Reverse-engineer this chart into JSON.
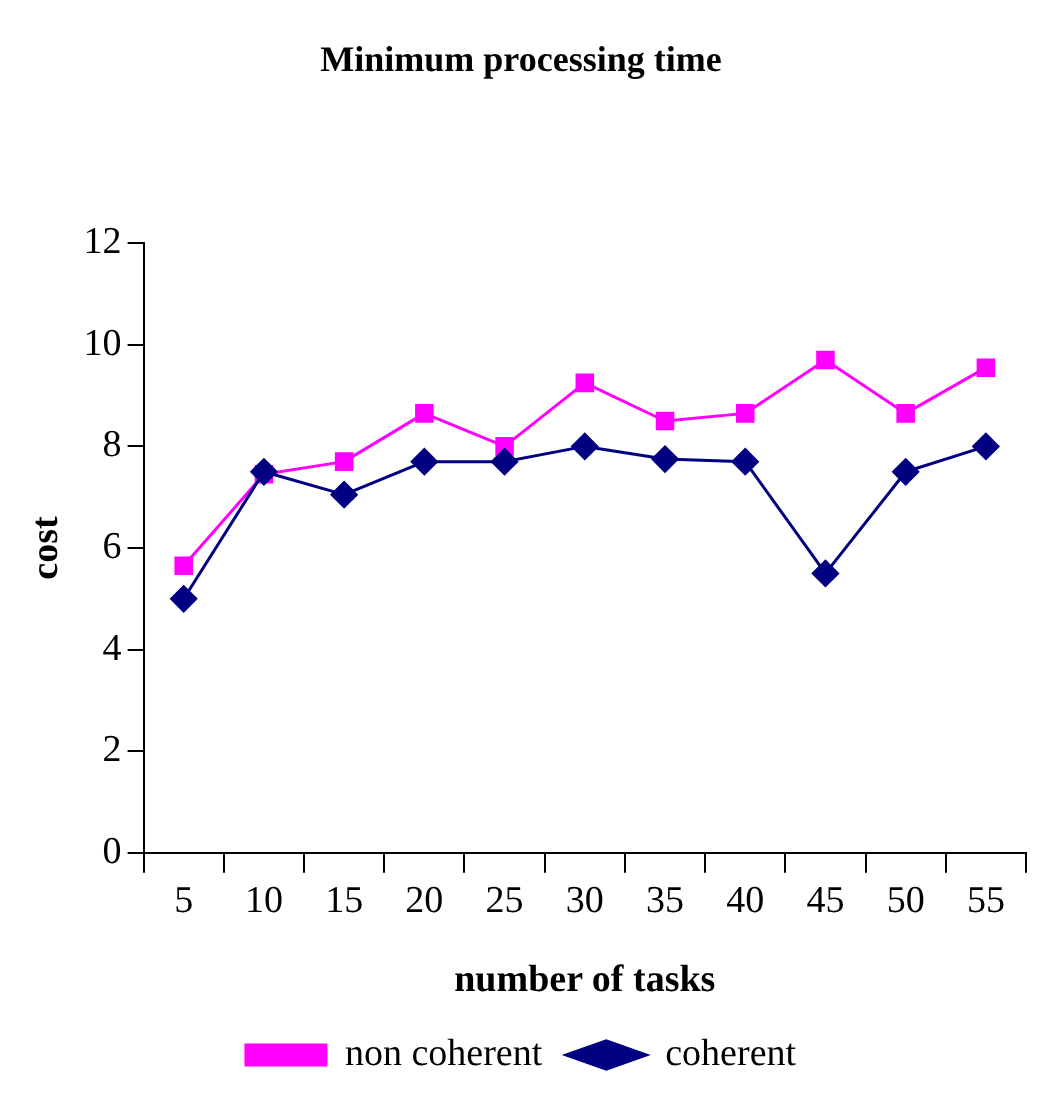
{
  "chart_data": {
    "type": "line",
    "title": "Minimum processing time",
    "xlabel": "number of tasks",
    "ylabel": "cost",
    "categories": [
      "5",
      "10",
      "15",
      "20",
      "25",
      "30",
      "35",
      "40",
      "45",
      "50",
      "55"
    ],
    "series": [
      {
        "name": "non coherent",
        "color": "#ff00ff",
        "marker": "square",
        "values": [
          5.65,
          7.45,
          7.7,
          8.65,
          8.0,
          9.25,
          8.5,
          8.65,
          9.7,
          8.65,
          9.55
        ]
      },
      {
        "name": "coherent",
        "color": "#000080",
        "marker": "diamond",
        "values": [
          5.0,
          7.5,
          7.05,
          7.7,
          7.7,
          8.0,
          7.75,
          7.7,
          5.5,
          7.5,
          8.0
        ]
      }
    ],
    "ylim": [
      0,
      12
    ],
    "yticks": [
      0,
      2,
      4,
      6,
      8,
      10,
      12
    ],
    "grid": false,
    "legend": "bottom",
    "line_style": "solid"
  }
}
